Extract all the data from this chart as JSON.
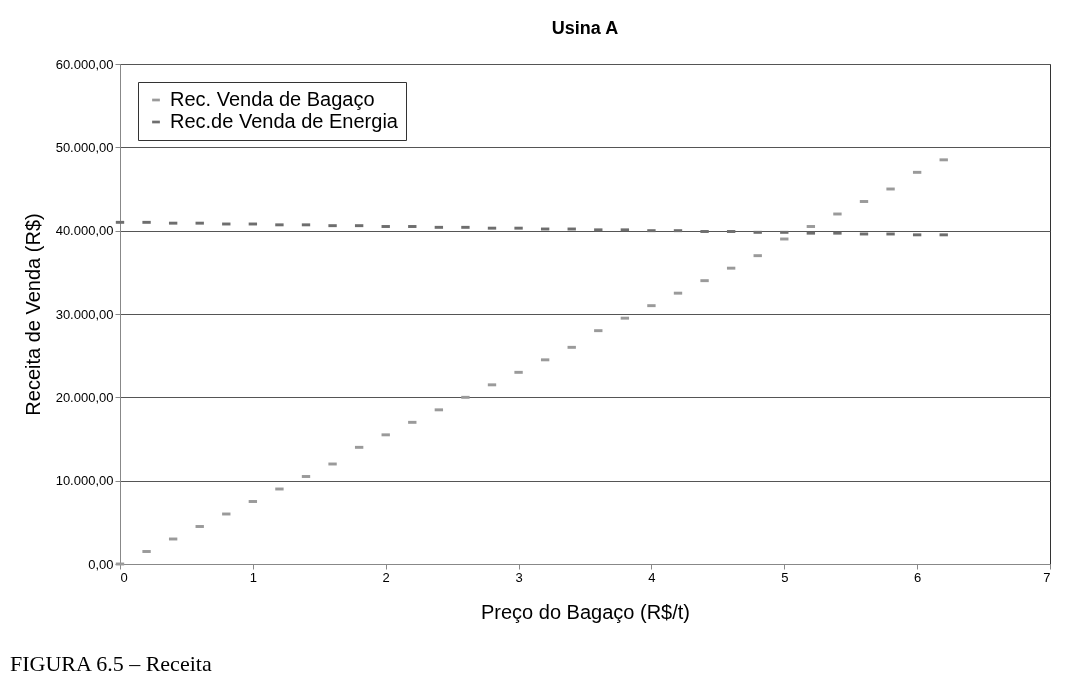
{
  "chart_data": {
    "type": "scatter",
    "title": "Usina A",
    "xlabel": "Preço do Bagaço (R$/t)",
    "ylabel": "Receita de Venda (R$)",
    "x": [
      0,
      0.2,
      0.4,
      0.6,
      0.8,
      1.0,
      1.2,
      1.4,
      1.6,
      1.8,
      2.0,
      2.2,
      2.4,
      2.6,
      2.8,
      3.0,
      3.2,
      3.4,
      3.6,
      3.8,
      4.0,
      4.2,
      4.4,
      4.6,
      4.8,
      5.0,
      5.2,
      5.4,
      5.6,
      5.8,
      6.0,
      6.2
    ],
    "series": [
      {
        "name": "Rec. Venda de Bagaço",
        "color": "#9a9a9a",
        "values": [
          0,
          1500,
          3000,
          4500,
          6000,
          7500,
          9000,
          10500,
          12000,
          14000,
          15500,
          17000,
          18500,
          20000,
          21500,
          23000,
          24500,
          26000,
          28000,
          29500,
          31000,
          32500,
          34000,
          35500,
          37000,
          39000,
          40500,
          42000,
          43500,
          45000,
          47000,
          48500
        ]
      },
      {
        "name": "Rec.de Venda de Energia",
        "color": "#6e6e6e",
        "values": [
          41000,
          41000,
          40900,
          40900,
          40800,
          40800,
          40700,
          40700,
          40600,
          40600,
          40500,
          40500,
          40400,
          40400,
          40300,
          40300,
          40200,
          40200,
          40100,
          40100,
          40000,
          40000,
          39900,
          39900,
          39800,
          39800,
          39700,
          39700,
          39600,
          39600,
          39500,
          39500
        ]
      }
    ],
    "xlim": [
      0,
      7
    ],
    "xticks": [
      0,
      1,
      2,
      3,
      4,
      5,
      6,
      7
    ],
    "ylim": [
      0,
      60000
    ],
    "yticks": [
      {
        "value": 0,
        "label": "0,00"
      },
      {
        "value": 10000,
        "label": "10.000,00"
      },
      {
        "value": 20000,
        "label": "20.000,00"
      },
      {
        "value": 30000,
        "label": "30.000,00"
      },
      {
        "value": 40000,
        "label": "40.000,00"
      },
      {
        "value": 50000,
        "label": "50.000,00"
      },
      {
        "value": 60000,
        "label": "60.000,00"
      }
    ],
    "grid": "y",
    "legend": "top left",
    "marker": "square",
    "annotations": [
      "FIGURA 6.5 – Receita"
    ]
  }
}
